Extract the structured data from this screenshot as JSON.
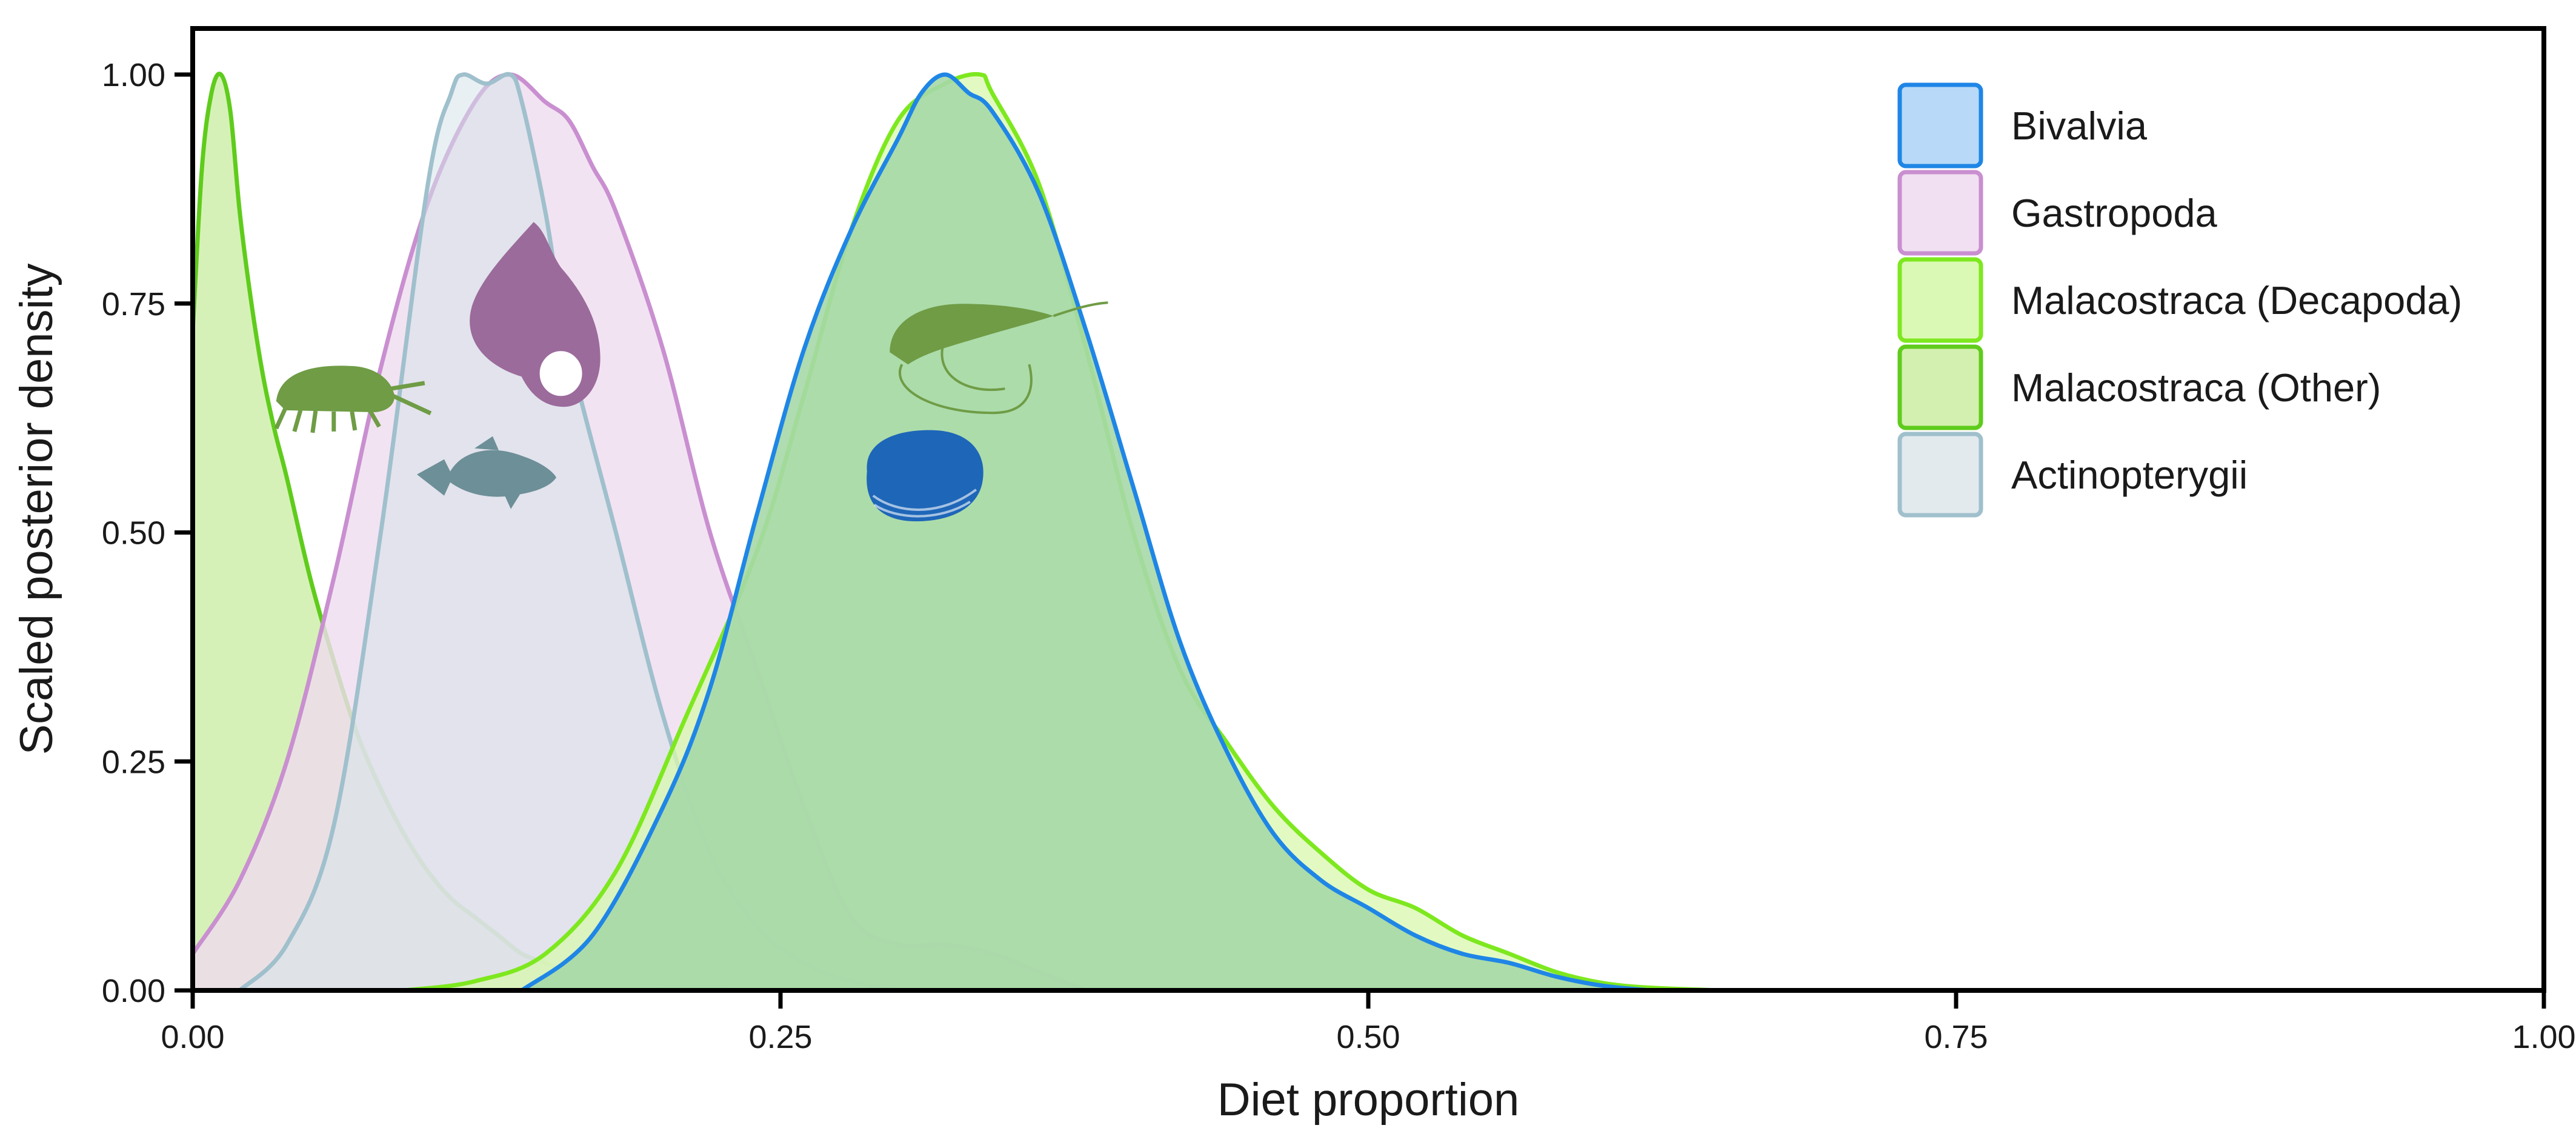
{
  "chart_data": {
    "type": "area",
    "xlabel": "Diet proportion",
    "ylabel": "Scaled posterior density",
    "xlim": [
      0,
      1
    ],
    "ylim": [
      0,
      1
    ],
    "x_ticks": [
      0,
      0.25,
      0.5,
      0.75,
      1
    ],
    "x_tick_labels": [
      "0.00",
      "0.25",
      "0.50",
      "0.75",
      "1.00"
    ],
    "y_ticks": [
      0,
      0.25,
      0.5,
      0.75,
      1
    ],
    "y_tick_labels": [
      "0.00",
      "0.25",
      "0.50",
      "0.75",
      "1.00"
    ],
    "grid": false,
    "legend_position": "top-right",
    "series": [
      {
        "name": "Malacostraca (Other)",
        "stroke": "#5fcc1c",
        "fill": "#cfeeaa",
        "fill_opacity": 0.85,
        "icon": "amphipod-icon",
        "x": [
          0,
          0.004,
          0.008,
          0.012,
          0.016,
          0.02,
          0.025,
          0.03,
          0.035,
          0.04,
          0.05,
          0.06,
          0.07,
          0.08,
          0.09,
          0.1,
          0.11,
          0.12,
          0.13,
          0.14,
          0.15,
          0.16,
          0.17,
          0.18,
          0.2,
          0.22,
          0.25
        ],
        "values": [
          0.72,
          0.9,
          0.98,
          1.0,
          0.96,
          0.85,
          0.75,
          0.67,
          0.61,
          0.56,
          0.45,
          0.36,
          0.28,
          0.22,
          0.17,
          0.13,
          0.1,
          0.08,
          0.06,
          0.04,
          0.03,
          0.02,
          0.015,
          0.01,
          0.005,
          0.002,
          0
        ]
      },
      {
        "name": "Gastropoda",
        "stroke": "#c98fd0",
        "fill": "#efdcef",
        "fill_opacity": 0.8,
        "icon": "snail-shell-icon",
        "x": [
          0,
          0.02,
          0.04,
          0.06,
          0.08,
          0.1,
          0.12,
          0.135,
          0.15,
          0.16,
          0.17,
          0.18,
          0.2,
          0.22,
          0.24,
          0.26,
          0.28,
          0.3,
          0.32,
          0.34,
          0.36,
          0.38
        ],
        "values": [
          0.04,
          0.12,
          0.25,
          0.45,
          0.68,
          0.86,
          0.97,
          1.0,
          0.97,
          0.95,
          0.9,
          0.85,
          0.7,
          0.5,
          0.35,
          0.2,
          0.08,
          0.05,
          0.05,
          0.04,
          0.02,
          0
        ]
      },
      {
        "name": "Actinopterygii",
        "stroke": "#9fc0cc",
        "fill": "#d5e4ea",
        "fill_opacity": 0.55,
        "icon": "fish-icon",
        "x": [
          0.02,
          0.04,
          0.06,
          0.08,
          0.1,
          0.11,
          0.115,
          0.125,
          0.135,
          0.14,
          0.15,
          0.16,
          0.18,
          0.2,
          0.22,
          0.24,
          0.26,
          0.28,
          0.3
        ],
        "values": [
          0,
          0.05,
          0.18,
          0.5,
          0.88,
          0.98,
          1.0,
          0.99,
          1.0,
          0.97,
          0.85,
          0.7,
          0.5,
          0.3,
          0.15,
          0.07,
          0.03,
          0.01,
          0
        ]
      },
      {
        "name": "Malacostraca (Decapoda)",
        "stroke": "#7ee81f",
        "fill": "#d8f8ad",
        "fill_opacity": 0.75,
        "icon": "shrimp-icon",
        "x": [
          0.09,
          0.12,
          0.15,
          0.18,
          0.21,
          0.24,
          0.26,
          0.28,
          0.3,
          0.32,
          0.335,
          0.34,
          0.36,
          0.38,
          0.4,
          0.42,
          0.44,
          0.46,
          0.48,
          0.5,
          0.52,
          0.54,
          0.56,
          0.58,
          0.6,
          0.62,
          0.65
        ],
        "values": [
          0,
          0.01,
          0.04,
          0.13,
          0.3,
          0.48,
          0.65,
          0.83,
          0.95,
          0.99,
          1.0,
          0.98,
          0.88,
          0.7,
          0.5,
          0.35,
          0.27,
          0.2,
          0.15,
          0.11,
          0.09,
          0.06,
          0.04,
          0.02,
          0.008,
          0.003,
          0
        ]
      },
      {
        "name": "Bivalvia",
        "stroke": "#1f86e6",
        "fill": "#a6d8a7",
        "fill_opacity": 0.9,
        "icon": "clam-icon",
        "x": [
          0.14,
          0.17,
          0.2,
          0.22,
          0.24,
          0.26,
          0.28,
          0.3,
          0.31,
          0.32,
          0.33,
          0.34,
          0.36,
          0.38,
          0.4,
          0.42,
          0.44,
          0.46,
          0.48,
          0.5,
          0.52,
          0.54,
          0.56,
          0.58,
          0.6,
          0.62
        ],
        "values": [
          0,
          0.06,
          0.2,
          0.33,
          0.52,
          0.7,
          0.83,
          0.93,
          0.98,
          1.0,
          0.98,
          0.96,
          0.87,
          0.72,
          0.55,
          0.38,
          0.26,
          0.17,
          0.12,
          0.09,
          0.06,
          0.04,
          0.03,
          0.015,
          0.005,
          0
        ]
      }
    ],
    "legend": [
      {
        "label": "Bivalvia",
        "stroke": "#1f86e6",
        "fill": "#b8daf8"
      },
      {
        "label": "Gastropoda",
        "stroke": "#c98fd0",
        "fill": "#f1e0f1"
      },
      {
        "label": "Malacostraca (Decapoda)",
        "stroke": "#7ee81f",
        "fill": "#daf9b4"
      },
      {
        "label": "Malacostraca (Other)",
        "stroke": "#5fcc1c",
        "fill": "#d4f0b1"
      },
      {
        "label": "Actinopterygii",
        "stroke": "#9fc0cc",
        "fill": "#e2eaee"
      }
    ],
    "silhouettes": [
      {
        "name": "amphipod-icon",
        "color": "#6f9c45",
        "x": 0.06,
        "y": 0.65
      },
      {
        "name": "snail-shell-icon",
        "color": "#9b6b9b",
        "x": 0.145,
        "y": 0.71
      },
      {
        "name": "fish-icon",
        "color": "#6d8f97",
        "x": 0.125,
        "y": 0.56
      },
      {
        "name": "shrimp-icon",
        "color": "#6f9c45",
        "x": 0.33,
        "y": 0.71
      },
      {
        "name": "clam-icon",
        "color": "#1e66b8",
        "x": 0.31,
        "y": 0.56
      }
    ]
  }
}
